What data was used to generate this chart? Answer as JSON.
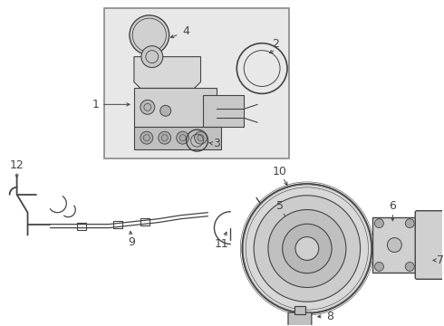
{
  "background_color": "#ffffff",
  "line_color": "#444444",
  "box_bg": "#e8e8e8",
  "box_border": "#888888",
  "figsize": [
    4.9,
    3.6
  ],
  "dpi": 100
}
